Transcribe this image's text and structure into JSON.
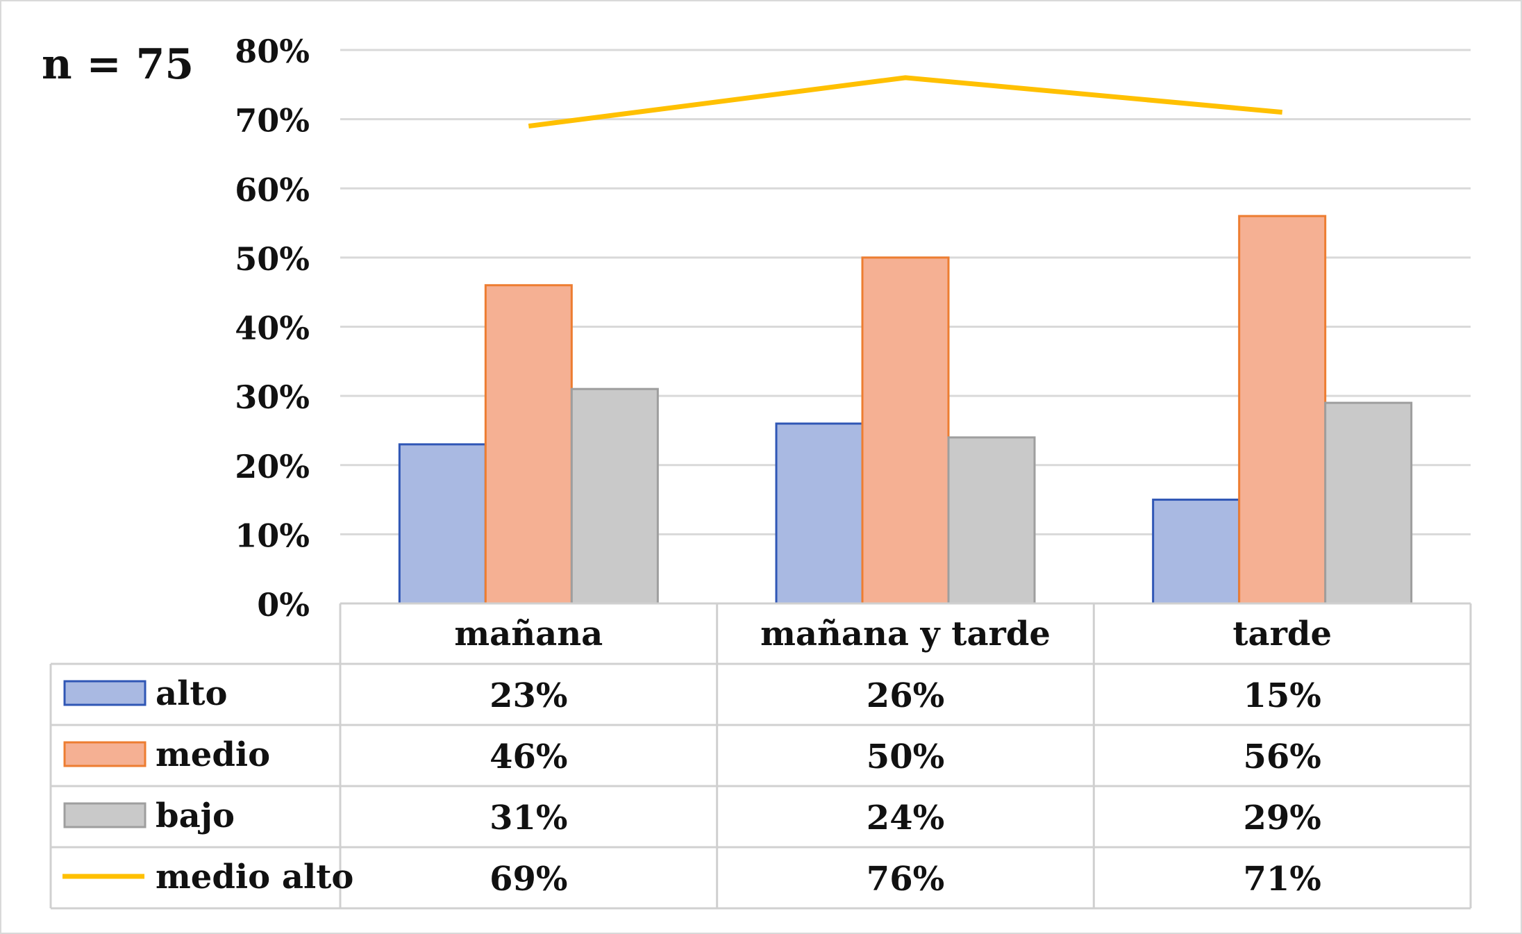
{
  "annotation": "n = 75",
  "chart_data": {
    "type": "bar",
    "categories": [
      "mañana",
      "mañana y tarde",
      "tarde"
    ],
    "y_ticks": [
      "0%",
      "10%",
      "20%",
      "30%",
      "40%",
      "50%",
      "60%",
      "70%",
      "80%"
    ],
    "ylim": [
      0,
      80
    ],
    "grid": true,
    "legend": "data-table",
    "series": [
      {
        "name": "alto",
        "kind": "bar",
        "values": [
          23,
          26,
          15
        ],
        "labels": [
          "23%",
          "26%",
          "15%"
        ],
        "color": "#A9B9E2",
        "stroke": "#2F56B5"
      },
      {
        "name": "medio",
        "kind": "bar",
        "values": [
          46,
          50,
          56
        ],
        "labels": [
          "46%",
          "50%",
          "56%"
        ],
        "color": "#F5B093",
        "stroke": "#ED7D31"
      },
      {
        "name": "bajo",
        "kind": "bar",
        "values": [
          31,
          24,
          29
        ],
        "labels": [
          "31%",
          "24%",
          "29%"
        ],
        "color": "#C9C9C9",
        "stroke": "#9E9E9E"
      },
      {
        "name": "medio alto",
        "kind": "line",
        "values": [
          69,
          76,
          71
        ],
        "labels": [
          "69%",
          "76%",
          "71%"
        ],
        "color": "#FFC000"
      }
    ]
  }
}
